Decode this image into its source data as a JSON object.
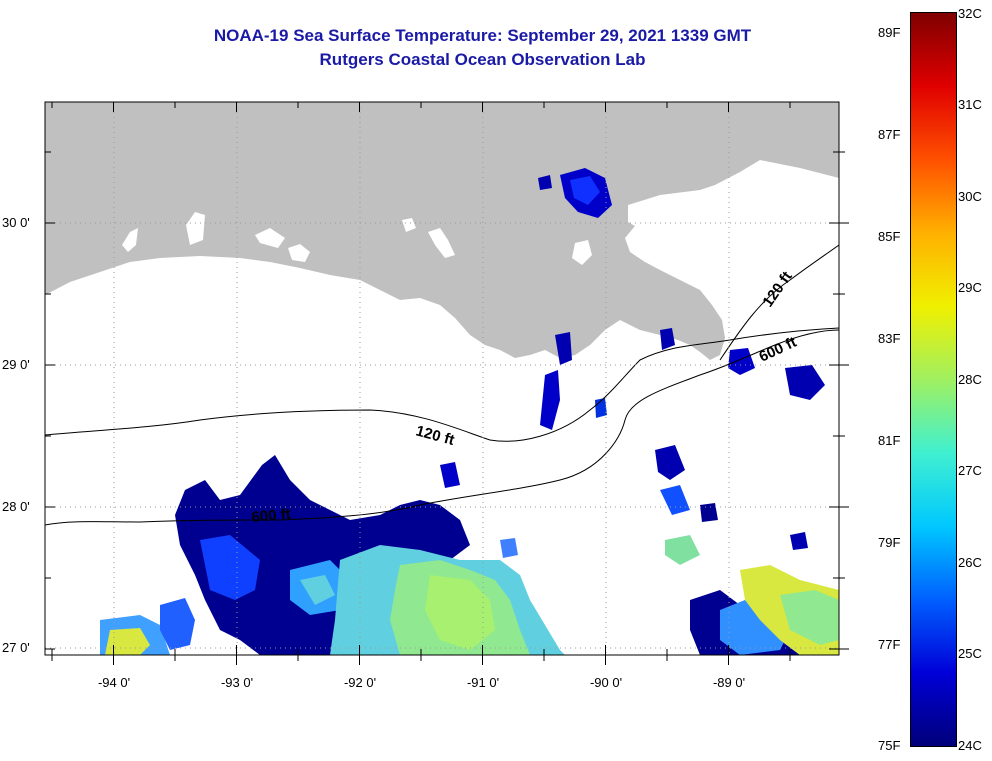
{
  "title": {
    "line1": "NOAA-19 Sea Surface Temperature:  September 29, 2021 1339 GMT",
    "line2": "Rutgers Coastal Ocean Observation Lab"
  },
  "axes": {
    "lat_labels": [
      "30 0'",
      "29 0'",
      "28 0'",
      "27 0'"
    ],
    "lon_labels": [
      "-94 0'",
      "-93 0'",
      "-92 0'",
      "-91 0'",
      "-90 0'",
      "-89 0'"
    ]
  },
  "contours": {
    "labels": [
      "120 ft",
      "600 ft",
      "120 ft",
      "600 ft"
    ]
  },
  "colorbar": {
    "fahrenheit": [
      "89F",
      "87F",
      "85F",
      "83F",
      "81F",
      "79F",
      "77F",
      "75F"
    ],
    "celsius": [
      "32C",
      "31C",
      "30C",
      "29C",
      "28C",
      "27C",
      "26C",
      "25C",
      "24C"
    ],
    "colors": [
      "#00007a",
      "#0000d8",
      "#0060ff",
      "#00c8ff",
      "#40f0d0",
      "#a0f060",
      "#f0f000",
      "#ffb000",
      "#ff5000",
      "#e00000",
      "#800000"
    ]
  },
  "colors": {
    "land": "#c0c0c0",
    "title": "#1a1aa6"
  }
}
